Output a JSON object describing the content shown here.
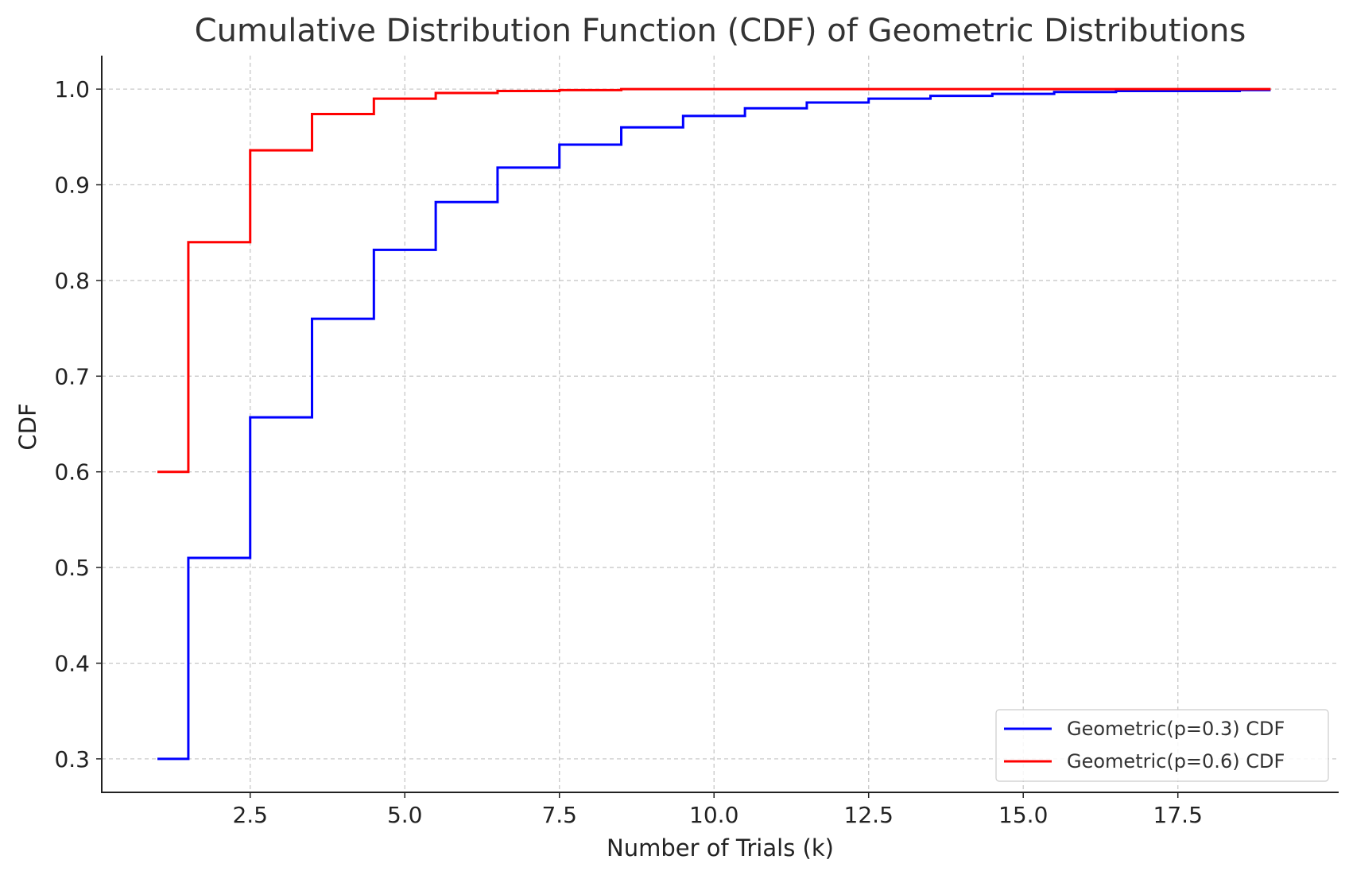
{
  "chart_data": {
    "type": "line",
    "step": "mid",
    "title": "Cumulative Distribution Function (CDF) of Geometric Distributions",
    "xlabel": "Number of Trials (k)",
    "ylabel": "CDF",
    "xlim": [
      0.1,
      20.1
    ],
    "ylim": [
      0.265,
      1.035
    ],
    "xticks": [
      2.5,
      5.0,
      7.5,
      10.0,
      12.5,
      15.0,
      17.5
    ],
    "xtick_labels": [
      "2.5",
      "5.0",
      "7.5",
      "10.0",
      "12.5",
      "15.0",
      "17.5"
    ],
    "yticks": [
      0.3,
      0.4,
      0.5,
      0.6,
      0.7,
      0.8,
      0.9,
      1.0
    ],
    "ytick_labels": [
      "0.3",
      "0.4",
      "0.5",
      "0.6",
      "0.7",
      "0.8",
      "0.9",
      "1.0"
    ],
    "grid": true,
    "legend_position": "bottom-right",
    "x": [
      1,
      2,
      3,
      4,
      5,
      6,
      7,
      8,
      9,
      10,
      11,
      12,
      13,
      14,
      15,
      16,
      17,
      18,
      19
    ],
    "series": [
      {
        "name": "Geometric(p=0.3) CDF",
        "color": "#0000ff",
        "values": [
          0.3,
          0.51,
          0.657,
          0.76,
          0.832,
          0.882,
          0.918,
          0.942,
          0.96,
          0.972,
          0.98,
          0.986,
          0.99,
          0.993,
          0.995,
          0.997,
          0.998,
          0.998,
          0.999
        ]
      },
      {
        "name": "Geometric(p=0.6) CDF",
        "color": "#ff0000",
        "values": [
          0.6,
          0.84,
          0.936,
          0.974,
          0.99,
          0.996,
          0.998,
          0.999,
          1.0,
          1.0,
          1.0,
          1.0,
          1.0,
          1.0,
          1.0,
          1.0,
          1.0,
          1.0,
          1.0
        ]
      }
    ]
  }
}
